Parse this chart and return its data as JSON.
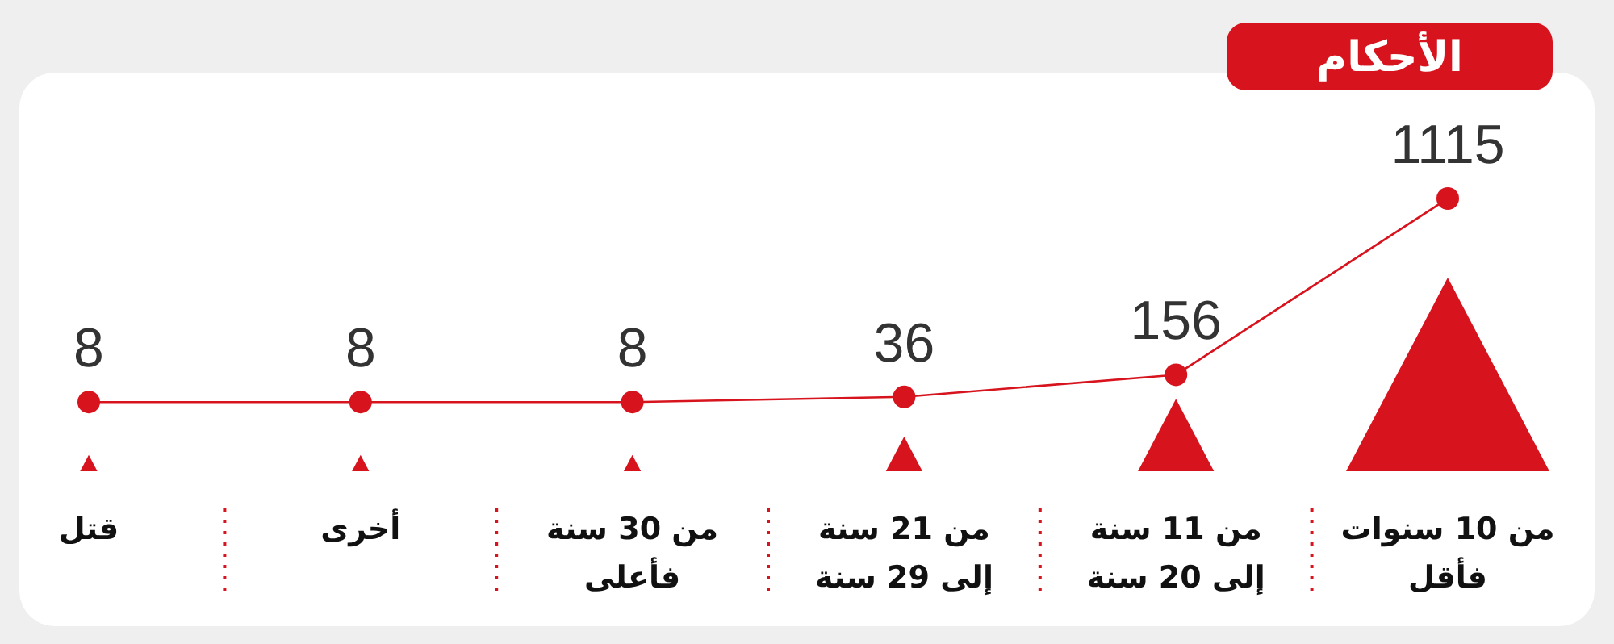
{
  "chart_data": {
    "type": "line",
    "title": "الأحكام",
    "categories": [
      "قتل",
      "أخرى",
      "من 30 سنة\nفأعلى",
      "من 21 سنة\nإلى 29 سنة",
      "من 11 سنة\nإلى 20 سنة",
      "من 10 سنوات\nفأقل"
    ],
    "series": [
      {
        "color": "#d7141e",
        "values": [
          8,
          8,
          8,
          36,
          156,
          1115
        ]
      }
    ],
    "data_labels": true,
    "marker": "circle"
  }
}
